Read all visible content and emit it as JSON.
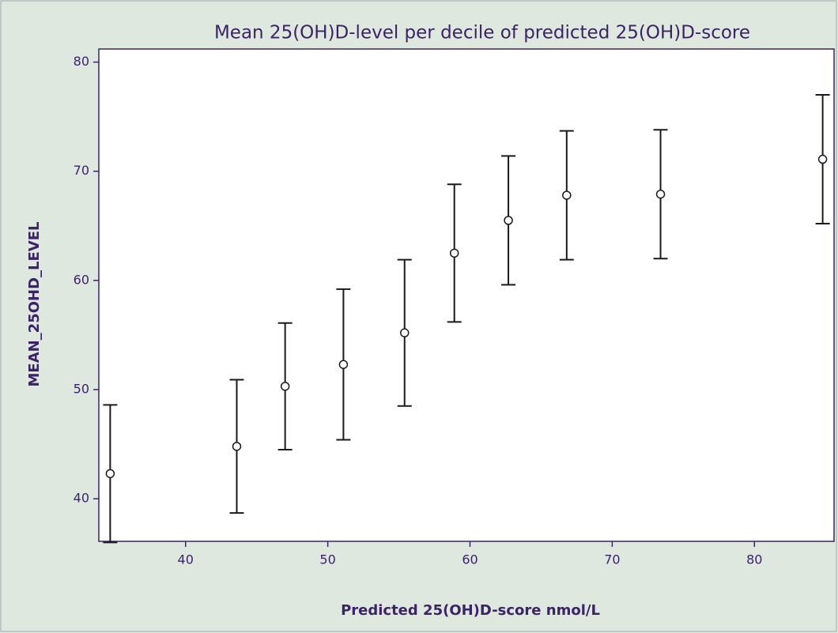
{
  "chart_data": {
    "type": "errorbar-scatter",
    "title": "Mean 25(OH)D-level per decile of predicted 25(OH)D-score",
    "x_label": "Predicted 25(OH)D-score nmol/L",
    "y_label": "MEAN_25OHD_LEVEL",
    "x": [
      34.7,
      43.6,
      47.0,
      51.1,
      55.4,
      58.9,
      62.7,
      66.8,
      73.4,
      84.8
    ],
    "values": [
      42.3,
      44.8,
      50.3,
      52.3,
      55.2,
      62.5,
      65.5,
      67.8,
      67.9,
      71.1
    ],
    "error": [
      6.3,
      6.1,
      5.8,
      6.9,
      6.7,
      6.3,
      5.9,
      5.9,
      5.9,
      5.9
    ],
    "color": "#1a1a1a",
    "xlim": [
      33.9,
      85.6
    ],
    "xticks": [
      40,
      50,
      60,
      70,
      80
    ],
    "ylim": [
      36.1,
      81.2
    ],
    "yticks": [
      40,
      50,
      60,
      70,
      80
    ]
  }
}
